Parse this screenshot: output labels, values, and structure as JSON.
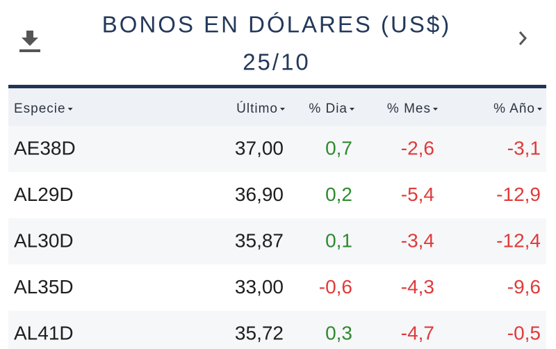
{
  "header": {
    "title": "BONOS EN DÓLARES (US$)",
    "date": "25/10"
  },
  "table": {
    "columns": [
      "Especie",
      "Último",
      "% Dia",
      "% Mes",
      "% Año"
    ],
    "rows": [
      [
        "AE38D",
        "37,00",
        "0,7",
        "-2,6",
        "-3,1"
      ],
      [
        "AL29D",
        "36,90",
        "0,2",
        "-5,4",
        "-12,9"
      ],
      [
        "AL30D",
        "35,87",
        "0,1",
        "-3,4",
        "-12,4"
      ],
      [
        "AL35D",
        "33,00",
        "-0,6",
        "-4,3",
        "-9,6"
      ],
      [
        "AL41D",
        "35,72",
        "0,3",
        "-4,7",
        "-0,5"
      ]
    ]
  }
}
